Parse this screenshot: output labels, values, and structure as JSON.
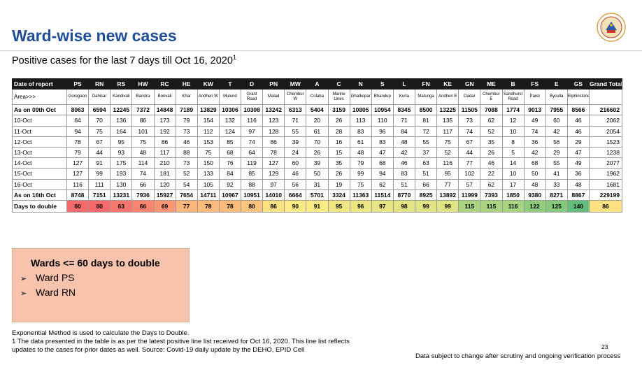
{
  "title": "Ward-wise new cases",
  "subtitle": "Positive cases for the last 7 days till Oct 16, 2020",
  "subtitle_sup": "1",
  "table": {
    "header": [
      "Date of report",
      "PS",
      "RN",
      "RS",
      "HW",
      "RC",
      "HE",
      "KW",
      "T",
      "D",
      "PN",
      "MW",
      "A",
      "C",
      "N",
      "S",
      "L",
      "FN",
      "KE",
      "GN",
      "ME",
      "B",
      "FS",
      "E",
      "GS",
      "Grand Total"
    ],
    "area": [
      "Area>>>",
      "Goregaon",
      "Dahisar",
      "Kandivali",
      "Bandra",
      "Borivali",
      "Khar",
      "Andheri W",
      "Mulund",
      "Grant Road",
      "Malad",
      "Chembur W",
      "Colaba",
      "Marine Lines",
      "Ghatkopar",
      "Bhandup",
      "Kurla",
      "Matunga",
      "Andheri E",
      "Dadar",
      "Chembur E",
      "Sandhurst Road",
      "Parel",
      "Byculla",
      "Elphinstone",
      ""
    ],
    "rows": [
      {
        "label": "As on 09th Oct",
        "bold": true,
        "values": [
          "8063",
          "6594",
          "12245",
          "7372",
          "14848",
          "7189",
          "13829",
          "10306",
          "10308",
          "13242",
          "6313",
          "5404",
          "3159",
          "10805",
          "10954",
          "8345",
          "8500",
          "13225",
          "11505",
          "7088",
          "1774",
          "9013",
          "7955",
          "8566",
          "216602"
        ]
      },
      {
        "label": "10-Oct",
        "values": [
          "64",
          "70",
          "136",
          "86",
          "173",
          "79",
          "154",
          "132",
          "116",
          "123",
          "71",
          "20",
          "26",
          "113",
          "110",
          "71",
          "81",
          "135",
          "73",
          "62",
          "12",
          "49",
          "60",
          "46",
          "2062"
        ]
      },
      {
        "label": "11-Oct",
        "values": [
          "94",
          "75",
          "164",
          "101",
          "192",
          "73",
          "112",
          "124",
          "97",
          "128",
          "55",
          "61",
          "28",
          "83",
          "96",
          "84",
          "72",
          "117",
          "74",
          "52",
          "10",
          "74",
          "42",
          "46",
          "2054"
        ]
      },
      {
        "label": "12-Oct",
        "values": [
          "78",
          "67",
          "95",
          "75",
          "86",
          "46",
          "153",
          "85",
          "74",
          "86",
          "39",
          "70",
          "16",
          "61",
          "83",
          "48",
          "55",
          "75",
          "67",
          "35",
          "8",
          "36",
          "56",
          "29",
          "1523"
        ]
      },
      {
        "label": "13-Oct",
        "values": [
          "79",
          "44",
          "93",
          "48",
          "117",
          "88",
          "75",
          "68",
          "64",
          "78",
          "24",
          "26",
          "15",
          "48",
          "47",
          "42",
          "37",
          "52",
          "44",
          "26",
          "5",
          "42",
          "29",
          "47",
          "1238"
        ]
      },
      {
        "label": "14-Oct",
        "values": [
          "127",
          "91",
          "175",
          "114",
          "210",
          "73",
          "150",
          "76",
          "119",
          "127",
          "60",
          "39",
          "35",
          "79",
          "68",
          "46",
          "63",
          "116",
          "77",
          "46",
          "14",
          "68",
          "55",
          "49",
          "2077"
        ]
      },
      {
        "label": "15-Oct",
        "values": [
          "127",
          "99",
          "193",
          "74",
          "181",
          "52",
          "133",
          "84",
          "85",
          "129",
          "46",
          "50",
          "26",
          "99",
          "94",
          "83",
          "51",
          "95",
          "102",
          "22",
          "10",
          "50",
          "41",
          "36",
          "1962"
        ]
      },
      {
        "label": "16-Oct",
        "values": [
          "116",
          "111",
          "130",
          "66",
          "120",
          "54",
          "105",
          "92",
          "88",
          "97",
          "56",
          "31",
          "19",
          "75",
          "62",
          "51",
          "66",
          "77",
          "57",
          "62",
          "17",
          "48",
          "33",
          "48",
          "1681"
        ]
      },
      {
        "label": "As on 16th Oct",
        "bold": true,
        "values": [
          "8748",
          "7151",
          "13231",
          "7936",
          "15927",
          "7654",
          "14711",
          "10967",
          "10951",
          "14010",
          "6664",
          "5701",
          "3324",
          "11363",
          "11514",
          "8770",
          "8925",
          "13892",
          "11999",
          "7393",
          "1850",
          "9380",
          "8271",
          "8867",
          "229199"
        ]
      }
    ],
    "double_row": {
      "label": "Days to double",
      "values": [
        "60",
        "60",
        "63",
        "66",
        "69",
        "77",
        "78",
        "78",
        "80",
        "86",
        "90",
        "91",
        "95",
        "96",
        "97",
        "98",
        "99",
        "99",
        "115",
        "115",
        "116",
        "122",
        "125",
        "140",
        "86"
      ],
      "colors": [
        "#f8696b",
        "#f8696b",
        "#f8766d",
        "#f98570",
        "#fa9473",
        "#fcb57a",
        "#fcba7b",
        "#fcba7b",
        "#fdc47d",
        "#fee282",
        "#ffeb84",
        "#fceb84",
        "#f0e784",
        "#ece683",
        "#e9e583",
        "#e5e483",
        "#e2e383",
        "#e2e383",
        "#aad47f",
        "#aad47f",
        "#a6d37e",
        "#8fcc7d",
        "#84c97c",
        "#63be7b",
        "#fee282"
      ]
    }
  },
  "wards_box": {
    "title": "Wards <= 60 days to double",
    "items": [
      "Ward PS",
      "Ward RN"
    ],
    "bg": "#f8c3ac"
  },
  "footnote": {
    "line1": "Exponential Method is used to calculate the Days to Double.",
    "line2": "1 The data presented in the table is as per the latest positive line list received for Oct 16, 2020. This line list reflects",
    "line3": "updates to the cases for prior dates as well. Source: Covid-19 daily update by the DEHO, EPID Cell"
  },
  "page_number": "23",
  "disclaimer": "Data subject to change after scrutiny and ongoing verification process",
  "colors": {
    "title": "#1f4e97",
    "header_bg": "#1a1a1a"
  },
  "logo": {
    "icon": "municipal-emblem-icon"
  }
}
